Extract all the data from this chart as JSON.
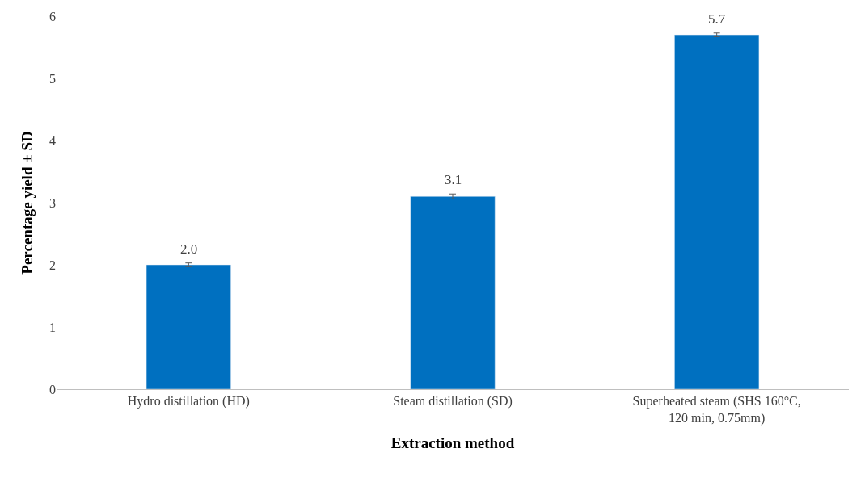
{
  "chart_data": {
    "type": "bar",
    "xlabel": "Extraction method",
    "ylabel": "Percentage yield ± SD",
    "categories": [
      "Hydro distillation (HD)",
      "Steam distillation (SD)",
      "Superheated steam (SHS 160°C,\n120 min, 0.75mm)"
    ],
    "values": [
      2.0,
      3.1,
      5.7
    ],
    "value_labels": [
      "2.0",
      "3.1",
      "5.7"
    ],
    "errors": [
      0.03,
      0.04,
      0.03
    ],
    "color": "#0070c0",
    "ylim": [
      0,
      6
    ],
    "yticks": [
      0,
      1,
      2,
      3,
      4,
      5,
      6
    ]
  }
}
